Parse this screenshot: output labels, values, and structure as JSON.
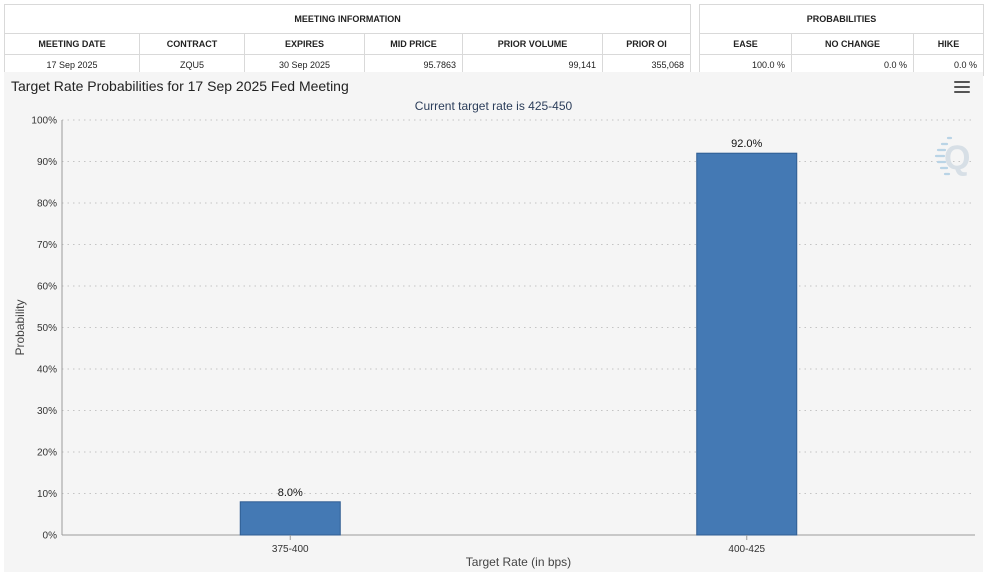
{
  "meeting_info": {
    "section_title": "MEETING INFORMATION",
    "columns": [
      "MEETING DATE",
      "CONTRACT",
      "EXPIRES",
      "MID PRICE",
      "PRIOR VOLUME",
      "PRIOR OI"
    ],
    "row": {
      "meeting_date": "17 Sep 2025",
      "contract": "ZQU5",
      "expires": "30 Sep 2025",
      "mid_price": "95.7863",
      "prior_volume": "99,141",
      "prior_oi": "355,068"
    }
  },
  "probabilities": {
    "section_title": "PROBABILITIES",
    "columns": [
      "EASE",
      "NO CHANGE",
      "HIKE"
    ],
    "row": {
      "ease": "100.0 %",
      "no_change": "0.0 %",
      "hike": "0.0 %"
    }
  },
  "chart": {
    "title": "Target Rate Probabilities for 17 Sep 2025 Fed Meeting",
    "subtitle": "Current target rate is 425-450",
    "menu_icon": "hamburger-menu-icon",
    "watermark_icon": "quikstrike-q-logo-icon"
  },
  "chart_data": {
    "type": "bar",
    "categories": [
      "375-400",
      "400-425"
    ],
    "values": [
      8.0,
      92.0
    ],
    "data_labels": [
      "8.0%",
      "92.0%"
    ],
    "title": "Target Rate Probabilities for 17 Sep 2025 Fed Meeting",
    "subtitle": "Current target rate is 425-450",
    "xlabel": "Target Rate (in bps)",
    "ylabel": "Probability",
    "ylim": [
      0,
      100
    ],
    "yticks": [
      0,
      10,
      20,
      30,
      40,
      50,
      60,
      70,
      80,
      90,
      100
    ],
    "ytick_labels": [
      "0%",
      "10%",
      "20%",
      "30%",
      "40%",
      "50%",
      "60%",
      "70%",
      "80%",
      "90%",
      "100%"
    ],
    "grid": true,
    "bar_color": "#4479b4",
    "bar_border_color": "#2f5d92"
  }
}
